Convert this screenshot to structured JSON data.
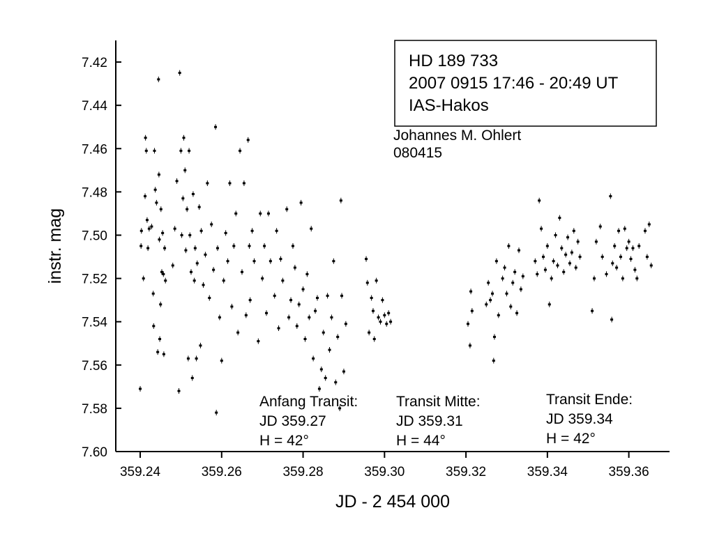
{
  "chart_data": {
    "type": "scatter",
    "x_label": "JD - 2 454 000",
    "y_label": "instr. mag",
    "color": "#000000",
    "xlim": [
      359.234,
      359.37
    ],
    "ylim": [
      7.6,
      7.41
    ],
    "xticks": [
      359.24,
      359.26,
      359.28,
      {
        "value": 359.3,
        "label": "359.30"
      },
      359.32,
      359.34,
      359.36
    ],
    "yticks": [
      7.42,
      7.44,
      7.46,
      7.48,
      {
        "value": 7.5,
        "label": "7.50"
      },
      7.52,
      7.54,
      7.56,
      7.58,
      {
        "value": 7.6,
        "label": "7.60"
      }
    ],
    "annotations": [
      [
        "HD 189 733",
        "2007 0915  17:46 - 20:49 UT",
        "IAS-Hakos"
      ],
      [
        "Johannes M. Ohlert",
        "080415"
      ],
      [
        "Anfang Transit:",
        "JD 359.27",
        "H = 42°"
      ],
      [
        "Transit Mitte:",
        "JD 359.31",
        "H = 44°"
      ],
      [
        "Transit Ende:",
        "JD 359.34",
        "H = 42°"
      ]
    ],
    "x": [
      359.24,
      359.2402,
      359.2403,
      359.2408,
      359.2412,
      359.2413,
      359.2415,
      359.2417,
      359.2419,
      359.2422,
      359.2428,
      359.2432,
      359.2433,
      359.2435,
      359.2437,
      359.244,
      359.2443,
      359.2445,
      359.2446,
      359.2447,
      359.2448,
      359.245,
      359.2451,
      359.2453,
      359.2455,
      359.2457,
      359.2458,
      359.246,
      359.2462,
      359.248,
      359.2485,
      359.249,
      359.2495,
      359.2497,
      359.25,
      359.2502,
      359.2505,
      359.2507,
      359.251,
      359.2512,
      359.2515,
      359.2518,
      359.252,
      359.2522,
      359.2525,
      359.2528,
      359.253,
      359.2533,
      359.2535,
      359.2538,
      359.254,
      359.2545,
      359.2548,
      359.255,
      359.2555,
      359.256,
      359.2565,
      359.257,
      359.2575,
      359.258,
      359.2585,
      359.2587,
      359.259,
      359.2595,
      359.26,
      359.2605,
      359.261,
      359.2615,
      359.262,
      359.2625,
      359.263,
      359.2635,
      359.264,
      359.2645,
      359.265,
      359.2655,
      359.266,
      359.2665,
      359.2668,
      359.267,
      359.2675,
      359.268,
      359.269,
      359.2695,
      359.27,
      359.2705,
      359.271,
      359.2715,
      359.272,
      359.273,
      359.2735,
      359.274,
      359.2745,
      359.275,
      359.276,
      359.2765,
      359.277,
      359.2775,
      359.278,
      359.2785,
      359.279,
      359.2795,
      359.28,
      359.2805,
      359.281,
      359.2815,
      359.282,
      359.2825,
      359.283,
      359.2835,
      359.284,
      359.2845,
      359.285,
      359.2855,
      359.286,
      359.2865,
      359.287,
      359.2875,
      359.288,
      359.2885,
      359.289,
      359.2893,
      359.2895,
      359.29,
      359.2905,
      359.2955,
      359.2958,
      359.2962,
      359.2968,
      359.2972,
      359.2975,
      359.298,
      359.2985,
      359.299,
      359.2995,
      359.3,
      359.3005,
      359.301,
      359.3015,
      359.3205,
      359.321,
      359.3212,
      359.3215,
      359.325,
      359.3255,
      359.326,
      359.3265,
      359.3268,
      359.327,
      359.3275,
      359.328,
      359.329,
      359.3295,
      359.33,
      359.3305,
      359.331,
      359.3315,
      359.332,
      359.3325,
      359.333,
      359.3335,
      359.334,
      359.337,
      359.3375,
      359.338,
      359.3385,
      359.339,
      359.3395,
      359.34,
      359.3405,
      359.341,
      359.3415,
      359.342,
      359.3425,
      359.343,
      359.3435,
      359.344,
      359.3445,
      359.345,
      359.3455,
      359.346,
      359.3465,
      359.347,
      359.3475,
      359.348,
      359.351,
      359.3515,
      359.352,
      359.353,
      359.3535,
      359.3545,
      359.3555,
      359.3558,
      359.356,
      359.3565,
      359.357,
      359.3575,
      359.358,
      359.3585,
      359.359,
      359.3595,
      359.36,
      359.3605,
      359.361,
      359.3615,
      359.362,
      359.3625,
      359.364,
      359.3645,
      359.365,
      359.3655
    ],
    "values": [
      7.571,
      7.505,
      7.498,
      7.52,
      7.482,
      7.455,
      7.461,
      7.493,
      7.506,
      7.497,
      7.496,
      7.527,
      7.542,
      7.461,
      7.479,
      7.485,
      7.554,
      7.428,
      7.472,
      7.502,
      7.548,
      7.532,
      7.488,
      7.517,
      7.499,
      7.518,
      7.555,
      7.506,
      7.521,
      7.514,
      7.497,
      7.475,
      7.572,
      7.425,
      7.461,
      7.5,
      7.483,
      7.455,
      7.47,
      7.507,
      7.488,
      7.557,
      7.461,
      7.5,
      7.517,
      7.566,
      7.481,
      7.521,
      7.506,
      7.557,
      7.513,
      7.487,
      7.551,
      7.498,
      7.523,
      7.509,
      7.476,
      7.529,
      7.495,
      7.516,
      7.45,
      7.582,
      7.506,
      7.538,
      7.558,
      7.521,
      7.499,
      7.512,
      7.476,
      7.533,
      7.505,
      7.49,
      7.545,
      7.461,
      7.517,
      7.476,
      7.537,
      7.456,
      7.505,
      7.53,
      7.498,
      7.512,
      7.549,
      7.49,
      7.52,
      7.505,
      7.536,
      7.49,
      7.512,
      7.528,
      7.498,
      7.543,
      7.511,
      7.521,
      7.488,
      7.538,
      7.53,
      7.505,
      7.515,
      7.542,
      7.532,
      7.485,
      7.525,
      7.548,
      7.518,
      7.538,
      7.497,
      7.557,
      7.535,
      7.529,
      7.571,
      7.562,
      7.545,
      7.566,
      7.528,
      7.553,
      7.538,
      7.512,
      7.568,
      7.547,
      7.58,
      7.484,
      7.528,
      7.563,
      7.541,
      7.511,
      7.522,
      7.545,
      7.529,
      7.535,
      7.548,
      7.521,
      7.538,
      7.54,
      7.53,
      7.537,
      7.541,
      7.536,
      7.54,
      7.541,
      7.551,
      7.526,
      7.535,
      7.532,
      7.522,
      7.53,
      7.527,
      7.558,
      7.547,
      7.512,
      7.537,
      7.52,
      7.515,
      7.527,
      7.505,
      7.533,
      7.522,
      7.517,
      7.536,
      7.507,
      7.525,
      7.519,
      7.512,
      7.518,
      7.484,
      7.497,
      7.51,
      7.516,
      7.505,
      7.532,
      7.52,
      7.512,
      7.5,
      7.514,
      7.492,
      7.506,
      7.517,
      7.509,
      7.501,
      7.513,
      7.508,
      7.498,
      7.515,
      7.503,
      7.51,
      7.535,
      7.52,
      7.503,
      7.496,
      7.51,
      7.518,
      7.482,
      7.539,
      7.513,
      7.505,
      7.515,
      7.498,
      7.51,
      7.52,
      7.497,
      7.506,
      7.503,
      7.511,
      7.506,
      7.516,
      7.52,
      7.505,
      7.498,
      7.51,
      7.495,
      7.514
    ]
  }
}
